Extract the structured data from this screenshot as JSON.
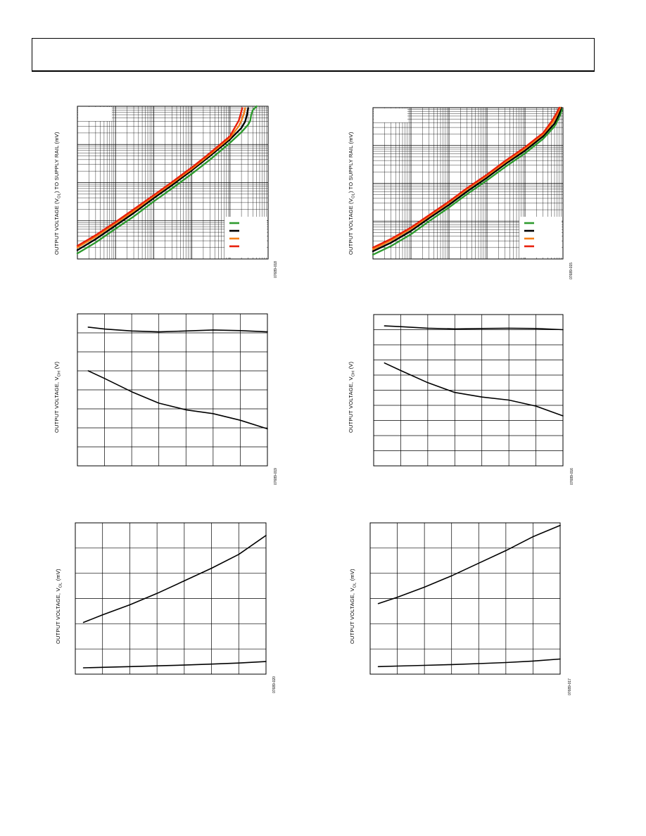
{
  "colors": {
    "green": "#2e9b2e",
    "black": "#000000",
    "orange": "#f57f17",
    "red": "#e8200c",
    "grid": "#000000"
  },
  "chart_data": [
    {
      "id": "p1",
      "type": "line",
      "xscale": "log",
      "yscale": "log",
      "xlim": [
        0.001,
        100
      ],
      "ylim": [
        0.1,
        1000
      ],
      "ylabel_pre": "OUTPUT VOLTAGE (V",
      "ylabel_sub": "OL",
      "ylabel_post": ") TO SUPPLY RAIL (mV)",
      "fig_id": "07689-018",
      "legend_colors": [
        "green",
        "black",
        "orange",
        "red"
      ],
      "series": [
        {
          "color": "green",
          "x": [
            0.001,
            0.003,
            0.01,
            0.03,
            0.1,
            0.3,
            1,
            3,
            10,
            20,
            30,
            34,
            36,
            40,
            50
          ],
          "y": [
            0.14,
            0.27,
            0.62,
            1.3,
            3.2,
            7,
            17,
            40,
            110,
            210,
            330,
            420,
            600,
            800,
            1000
          ]
        },
        {
          "color": "black",
          "x": [
            0.001,
            0.003,
            0.01,
            0.03,
            0.1,
            0.3,
            1,
            3,
            10,
            20,
            25,
            28,
            30
          ],
          "y": [
            0.17,
            0.33,
            0.75,
            1.6,
            3.9,
            8.5,
            21,
            50,
            135,
            270,
            400,
            600,
            900
          ]
        },
        {
          "color": "orange",
          "x": [
            0.001,
            0.003,
            0.01,
            0.03,
            0.1,
            0.3,
            1,
            3,
            10,
            17,
            20,
            23,
            25
          ],
          "y": [
            0.2,
            0.38,
            0.86,
            1.8,
            4.4,
            9.6,
            23,
            55,
            150,
            300,
            420,
            620,
            900
          ]
        },
        {
          "color": "red",
          "x": [
            0.001,
            0.003,
            0.01,
            0.03,
            0.1,
            0.3,
            1,
            3,
            10,
            14,
            17,
            19,
            21
          ],
          "y": [
            0.22,
            0.42,
            0.93,
            2,
            4.7,
            10.3,
            25,
            60,
            165,
            300,
            420,
            620,
            900
          ]
        }
      ]
    },
    {
      "id": "p2",
      "type": "line",
      "xscale": "log",
      "yscale": "log",
      "xlim": [
        0.001,
        100
      ],
      "ylim": [
        0.1,
        1000
      ],
      "ylabel_pre": "OUTPUT VOLTAGE (V",
      "ylabel_sub": "OL",
      "ylabel_post": ") TO SUPPLY RAIL (mV)",
      "fig_id": "07689-015",
      "legend_colors": [
        "green",
        "black",
        "orange",
        "red"
      ],
      "series": [
        {
          "color": "green",
          "x": [
            0.001,
            0.003,
            0.01,
            0.03,
            0.1,
            0.3,
            1,
            3,
            10,
            30,
            60,
            80,
            95
          ],
          "y": [
            0.13,
            0.22,
            0.45,
            1,
            2.3,
            5.2,
            12,
            27,
            62,
            150,
            320,
            560,
            900
          ]
        },
        {
          "color": "black",
          "x": [
            0.001,
            0.003,
            0.01,
            0.03,
            0.1,
            0.3,
            1,
            3,
            10,
            30,
            60,
            78,
            90
          ],
          "y": [
            0.16,
            0.27,
            0.55,
            1.2,
            2.7,
            6.1,
            14,
            32,
            73,
            175,
            380,
            650,
            1000
          ]
        },
        {
          "color": "orange",
          "x": [
            0.001,
            0.003,
            0.01,
            0.03,
            0.1,
            0.3,
            1,
            3,
            10,
            30,
            55,
            72,
            85
          ],
          "y": [
            0.18,
            0.31,
            0.63,
            1.35,
            3.1,
            7,
            16,
            36,
            83,
            200,
            420,
            700,
            1000
          ]
        },
        {
          "color": "red",
          "x": [
            0.001,
            0.003,
            0.01,
            0.03,
            0.1,
            0.3,
            1,
            3,
            10,
            30,
            50,
            68,
            80
          ],
          "y": [
            0.2,
            0.34,
            0.68,
            1.45,
            3.3,
            7.5,
            17,
            39,
            90,
            215,
            430,
            720,
            1000
          ]
        }
      ]
    },
    {
      "id": "p3",
      "type": "line",
      "xlim": [
        0,
        7
      ],
      "ylim": [
        0,
        8
      ],
      "xgrid": 7,
      "ygrid": 8,
      "ylabel_pre": "OUTPUT VOLTAGE, V",
      "ylabel_sub": "OH",
      "ylabel_post": " (V)",
      "fig_id": "07689-019",
      "series": [
        {
          "color": "black",
          "x": [
            0.4,
            1,
            2,
            3,
            4,
            5,
            6,
            7
          ],
          "y": [
            7.3,
            7.2,
            7.1,
            7.05,
            7.1,
            7.15,
            7.12,
            7.05
          ]
        },
        {
          "color": "black",
          "x": [
            0.4,
            1,
            2,
            3,
            4,
            5,
            6,
            7
          ],
          "y": [
            5,
            4.6,
            3.9,
            3.3,
            2.95,
            2.75,
            2.4,
            1.95
          ]
        }
      ]
    },
    {
      "id": "p4",
      "type": "line",
      "xlim": [
        0,
        7
      ],
      "ylim": [
        0,
        10
      ],
      "xgrid": 7,
      "ygrid": 10,
      "ylabel_pre": "OUTPUT VOLTAGE, V",
      "ylabel_sub": "OH",
      "ylabel_post": " (V)",
      "fig_id": "07689-016",
      "series": [
        {
          "color": "black",
          "x": [
            0.4,
            1,
            2,
            3,
            4,
            5,
            6,
            7
          ],
          "y": [
            9.25,
            9.2,
            9.1,
            9.05,
            9.08,
            9.1,
            9.08,
            9
          ]
        },
        {
          "color": "black",
          "x": [
            0.4,
            1,
            2,
            3,
            4,
            5,
            6,
            7
          ],
          "y": [
            6.8,
            6.3,
            5.5,
            4.85,
            4.55,
            4.35,
            3.95,
            3.3
          ]
        }
      ]
    },
    {
      "id": "p5",
      "type": "line",
      "xlim": [
        0,
        7
      ],
      "ylim": [
        0,
        6
      ],
      "xgrid": 7,
      "ygrid": 6,
      "ylabel_pre": "OUTPUT VOLTAGE, V",
      "ylabel_sub": "OL",
      "ylabel_post": " (mV)",
      "fig_id": "07689-020",
      "series": [
        {
          "color": "black",
          "x": [
            0.3,
            1,
            2,
            3,
            4,
            5,
            6,
            7
          ],
          "y": [
            2.05,
            2.35,
            2.75,
            3.2,
            3.7,
            4.2,
            4.75,
            5.5
          ]
        },
        {
          "color": "black",
          "x": [
            0.3,
            1,
            2,
            3,
            4,
            5,
            6,
            7
          ],
          "y": [
            0.25,
            0.27,
            0.3,
            0.33,
            0.36,
            0.4,
            0.44,
            0.5
          ]
        }
      ]
    },
    {
      "id": "p6",
      "type": "line",
      "xlim": [
        0,
        7
      ],
      "ylim": [
        0,
        6
      ],
      "xgrid": 7,
      "ygrid": 6,
      "ylabel_pre": "OUTPUT VOLTAGE, V",
      "ylabel_sub": "OL",
      "ylabel_post": " (mV)",
      "fig_id": "07689-017",
      "series": [
        {
          "color": "black",
          "x": [
            0.3,
            1,
            2,
            3,
            4,
            5,
            6,
            7
          ],
          "y": [
            2.8,
            3.05,
            3.45,
            3.9,
            4.4,
            4.9,
            5.45,
            5.9
          ]
        },
        {
          "color": "black",
          "x": [
            0.3,
            1,
            2,
            3,
            4,
            5,
            6,
            7
          ],
          "y": [
            0.3,
            0.32,
            0.35,
            0.38,
            0.42,
            0.46,
            0.52,
            0.6
          ]
        }
      ]
    }
  ]
}
